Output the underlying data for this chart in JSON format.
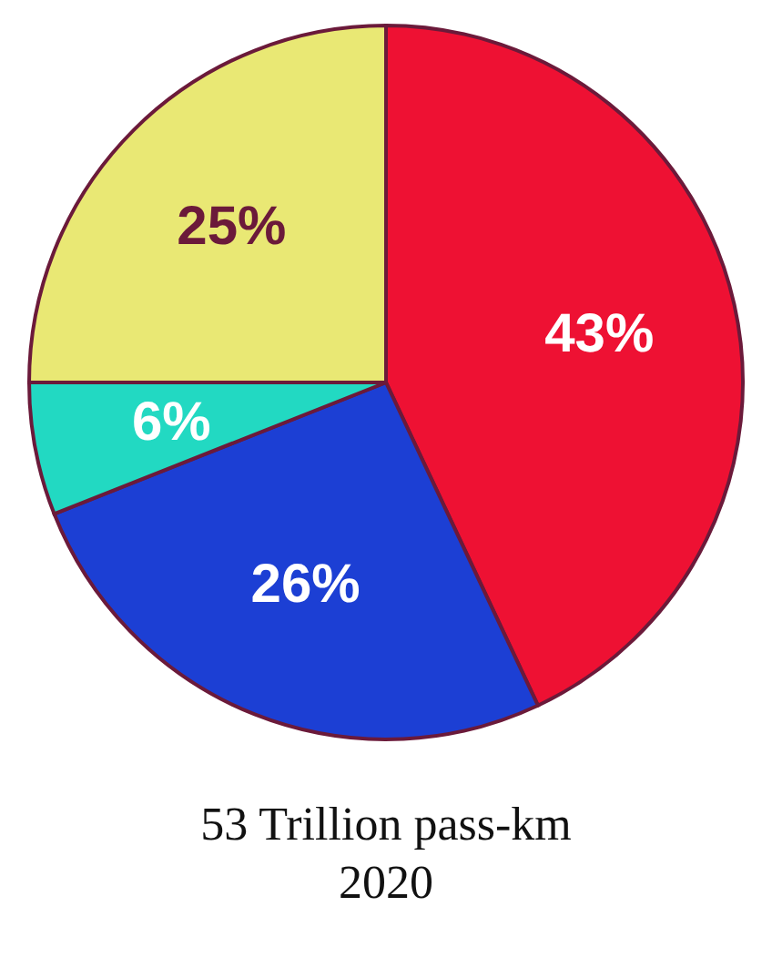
{
  "chart_data": {
    "type": "pie",
    "title": "53 Trillion pass-km",
    "subtitle": "2020",
    "categories": [
      null,
      null,
      null,
      null
    ],
    "values": [
      43,
      26,
      6,
      25
    ],
    "colors": [
      "#ee1133",
      "#1c3fd4",
      "#22d9c2",
      "#e9e874"
    ],
    "value_labels": [
      "43%",
      "26%",
      "6%",
      "25%"
    ]
  }
}
